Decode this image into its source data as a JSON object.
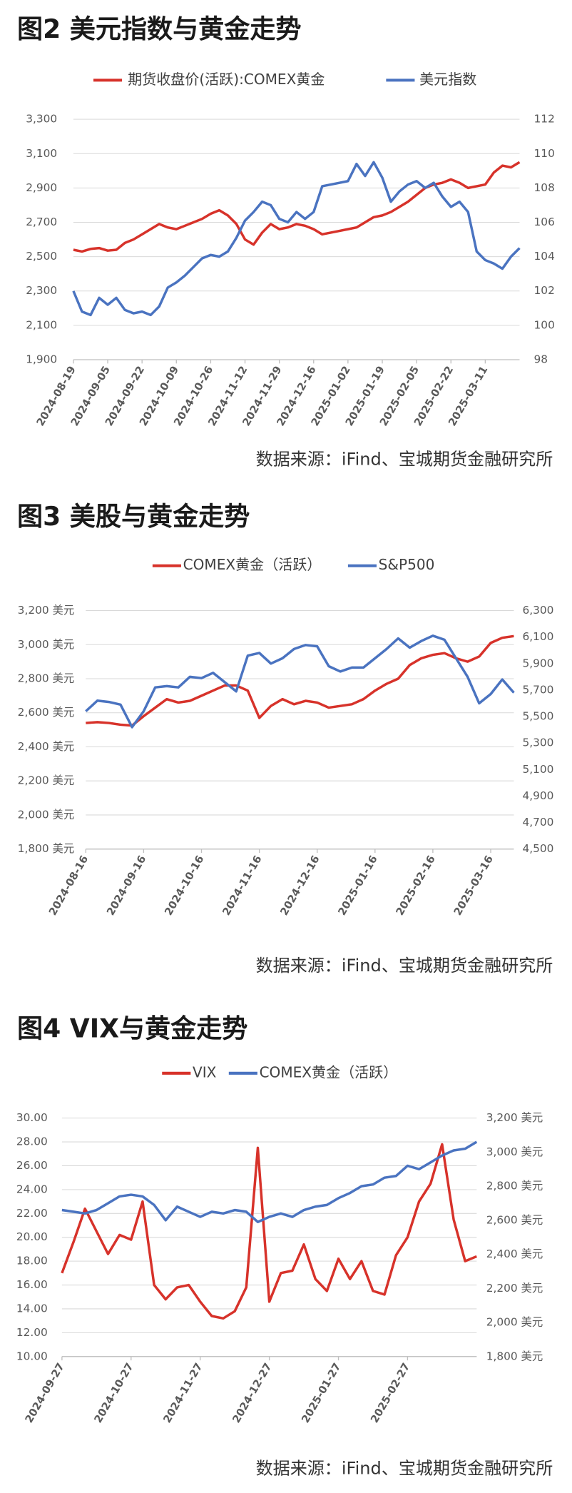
{
  "chart_data": [
    {
      "type": "line",
      "title": "图2  美元指数与黄金走势",
      "source": "数据来源：iFind、宝城期货金融研究所",
      "grid": true,
      "categories": [
        "2024-08-19",
        null,
        null,
        null,
        "2024-09-05",
        null,
        null,
        null,
        "2024-09-22",
        null,
        null,
        null,
        "2024-10-09",
        null,
        null,
        null,
        "2024-10-26",
        null,
        null,
        null,
        "2024-11-12",
        null,
        null,
        null,
        "2024-11-29",
        null,
        null,
        null,
        "2024-12-16",
        null,
        null,
        null,
        "2025-01-02",
        null,
        null,
        null,
        "2025-01-19",
        null,
        null,
        null,
        "2025-02-05",
        null,
        null,
        null,
        "2025-02-22",
        null,
        null,
        null,
        "2025-03-11",
        null,
        null,
        null,
        null
      ],
      "series": [
        {
          "name": "期货收盘价(活跃):COMEX黄金",
          "color": "#d7322a",
          "values": [
            2540,
            2530,
            2545,
            2550,
            2535,
            2540,
            2580,
            2600,
            2630,
            2660,
            2690,
            2670,
            2660,
            2680,
            2700,
            2720,
            2750,
            2770,
            2740,
            2690,
            2600,
            2570,
            2640,
            2690,
            2660,
            2670,
            2690,
            2680,
            2660,
            2630,
            2640,
            2650,
            2660,
            2670,
            2700,
            2730,
            2740,
            2760,
            2790,
            2820,
            2860,
            2900,
            2920,
            2930,
            2950,
            2930,
            2900,
            2910,
            2920,
            2990,
            3030,
            3020,
            3050
          ]
        },
        {
          "name": "美元指数",
          "color": "#4a73c0",
          "axis": "y2",
          "values": [
            102.0,
            100.8,
            100.6,
            101.6,
            101.2,
            101.6,
            100.9,
            100.7,
            100.8,
            100.6,
            101.1,
            102.2,
            102.5,
            102.9,
            103.4,
            103.9,
            104.1,
            104.0,
            104.3,
            105.1,
            106.1,
            106.6,
            107.2,
            107.0,
            106.2,
            106.0,
            106.6,
            106.2,
            106.6,
            108.1,
            108.2,
            108.3,
            108.4,
            109.4,
            108.7,
            109.5,
            108.6,
            107.2,
            107.8,
            108.2,
            108.4,
            108.0,
            108.3,
            107.5,
            106.9,
            107.2,
            106.6,
            104.3,
            103.8,
            103.6,
            103.3,
            104.0,
            104.5
          ]
        }
      ],
      "ylim": [
        1900,
        3300
      ],
      "yticks": [
        {
          "value": 1900,
          "label": "1,900"
        },
        {
          "value": 2100,
          "label": "2,100"
        },
        {
          "value": 2300,
          "label": "2,300"
        },
        {
          "value": 2500,
          "label": "2,500"
        },
        {
          "value": 2700,
          "label": "2,700"
        },
        {
          "value": 2900,
          "label": "2,900"
        },
        {
          "value": 3100,
          "label": "3,100"
        },
        {
          "value": 3300,
          "label": "3,300"
        }
      ],
      "y2lim": [
        98,
        112
      ],
      "y2ticks": [
        98,
        100,
        102,
        104,
        106,
        108,
        110,
        112
      ]
    },
    {
      "type": "line",
      "title": "图3  美股与黄金走势",
      "source": "数据来源：iFind、宝城期货金融研究所",
      "grid": true,
      "categories": [
        "2024-08-16",
        null,
        null,
        null,
        null,
        "2024-09-16",
        null,
        null,
        null,
        null,
        "2024-10-16",
        null,
        null,
        null,
        null,
        "2024-11-16",
        null,
        null,
        null,
        null,
        "2024-12-16",
        null,
        null,
        null,
        null,
        "2025-01-16",
        null,
        null,
        null,
        null,
        "2025-02-16",
        null,
        null,
        null,
        null,
        "2025-03-16",
        null,
        null
      ],
      "series": [
        {
          "name": "COMEX黄金（活跃）",
          "color": "#d7322a",
          "values": [
            2540,
            2545,
            2540,
            2530,
            2525,
            2580,
            2630,
            2680,
            2660,
            2670,
            2700,
            2730,
            2760,
            2760,
            2730,
            2570,
            2640,
            2680,
            2650,
            2670,
            2660,
            2630,
            2640,
            2650,
            2680,
            2730,
            2770,
            2800,
            2880,
            2920,
            2940,
            2950,
            2920,
            2900,
            2930,
            3010,
            3040,
            3050
          ]
        },
        {
          "name": "S&P500",
          "color": "#4a73c0",
          "axis": "y2",
          "values": [
            5540,
            5620,
            5610,
            5590,
            5420,
            5540,
            5720,
            5730,
            5720,
            5800,
            5790,
            5830,
            5760,
            5690,
            5960,
            5980,
            5900,
            5940,
            6010,
            6040,
            6030,
            5880,
            5840,
            5870,
            5870,
            5940,
            6010,
            6090,
            6020,
            6070,
            6110,
            6080,
            5940,
            5800,
            5600,
            5670,
            5780,
            5680
          ]
        }
      ],
      "ylim": [
        1800,
        3200
      ],
      "yticks": [
        {
          "value": 1800,
          "label": "1,800 美元"
        },
        {
          "value": 2000,
          "label": "2,000 美元"
        },
        {
          "value": 2200,
          "label": "2,200 美元"
        },
        {
          "value": 2400,
          "label": "2,400 美元"
        },
        {
          "value": 2600,
          "label": "2,600 美元"
        },
        {
          "value": 2800,
          "label": "2,800 美元"
        },
        {
          "value": 3000,
          "label": "3,000 美元"
        },
        {
          "value": 3200,
          "label": "3,200 美元"
        }
      ],
      "y2lim": [
        4500,
        6300
      ],
      "y2ticks": [
        {
          "value": 4500,
          "label": "4,500"
        },
        {
          "value": 4700,
          "label": "4,700"
        },
        {
          "value": 4900,
          "label": "4,900"
        },
        {
          "value": 5100,
          "label": "5,100"
        },
        {
          "value": 5300,
          "label": "5,300"
        },
        {
          "value": 5500,
          "label": "5,500"
        },
        {
          "value": 5700,
          "label": "5,700"
        },
        {
          "value": 5900,
          "label": "5,900"
        },
        {
          "value": 6100,
          "label": "6,100"
        },
        {
          "value": 6300,
          "label": "6,300"
        }
      ]
    },
    {
      "type": "line",
      "title": "图4  VIX与黄金走势",
      "source": "数据来源：iFind、宝城期货金融研究所",
      "grid": true,
      "categories": [
        "2024-09-27",
        null,
        null,
        null,
        null,
        null,
        "2024-10-27",
        null,
        null,
        null,
        null,
        null,
        "2024-11-27",
        null,
        null,
        null,
        null,
        null,
        "2024-12-27",
        null,
        null,
        null,
        null,
        null,
        "2025-01-27",
        null,
        null,
        null,
        null,
        null,
        "2025-02-27",
        null,
        null,
        null,
        null,
        null,
        null
      ],
      "series": [
        {
          "name": "VIX",
          "color": "#d7322a",
          "values": [
            17.0,
            19.6,
            22.4,
            20.5,
            18.6,
            20.2,
            19.8,
            23.0,
            16.0,
            14.8,
            15.8,
            16.0,
            14.6,
            13.4,
            13.2,
            13.8,
            15.8,
            27.5,
            14.6,
            17.0,
            17.2,
            19.4,
            16.5,
            15.5,
            18.2,
            16.5,
            18.0,
            15.5,
            15.2,
            18.5,
            20.0,
            23.0,
            24.5,
            27.8,
            21.5,
            18.0,
            18.4
          ]
        },
        {
          "name": "COMEX黄金（活跃）",
          "color": "#4a73c0",
          "axis": "y2",
          "values": [
            2660,
            2650,
            2640,
            2660,
            2700,
            2740,
            2750,
            2740,
            2690,
            2600,
            2680,
            2650,
            2620,
            2650,
            2640,
            2660,
            2650,
            2590,
            2620,
            2640,
            2620,
            2660,
            2680,
            2690,
            2730,
            2760,
            2800,
            2810,
            2850,
            2860,
            2920,
            2900,
            2940,
            2980,
            3010,
            3020,
            3060
          ]
        }
      ],
      "ylim": [
        10,
        30
      ],
      "yticks": [
        {
          "value": 10,
          "label": "10.00"
        },
        {
          "value": 12,
          "label": "12.00"
        },
        {
          "value": 14,
          "label": "14.00"
        },
        {
          "value": 16,
          "label": "16.00"
        },
        {
          "value": 18,
          "label": "18.00"
        },
        {
          "value": 20,
          "label": "20.00"
        },
        {
          "value": 22,
          "label": "22.00"
        },
        {
          "value": 24,
          "label": "24.00"
        },
        {
          "value": 26,
          "label": "26.00"
        },
        {
          "value": 28,
          "label": "28.00"
        },
        {
          "value": 30,
          "label": "30.00"
        }
      ],
      "y2lim": [
        1800,
        3200
      ],
      "y2ticks": [
        {
          "value": 1800,
          "label": "1,800 美元"
        },
        {
          "value": 2000,
          "label": "2,000 美元"
        },
        {
          "value": 2200,
          "label": "2,200 美元"
        },
        {
          "value": 2400,
          "label": "2,400 美元"
        },
        {
          "value": 2600,
          "label": "2,600 美元"
        },
        {
          "value": 2800,
          "label": "2,800 美元"
        },
        {
          "value": 3000,
          "label": "3,000 美元"
        },
        {
          "value": 3200,
          "label": "3,200 美元"
        }
      ]
    }
  ]
}
